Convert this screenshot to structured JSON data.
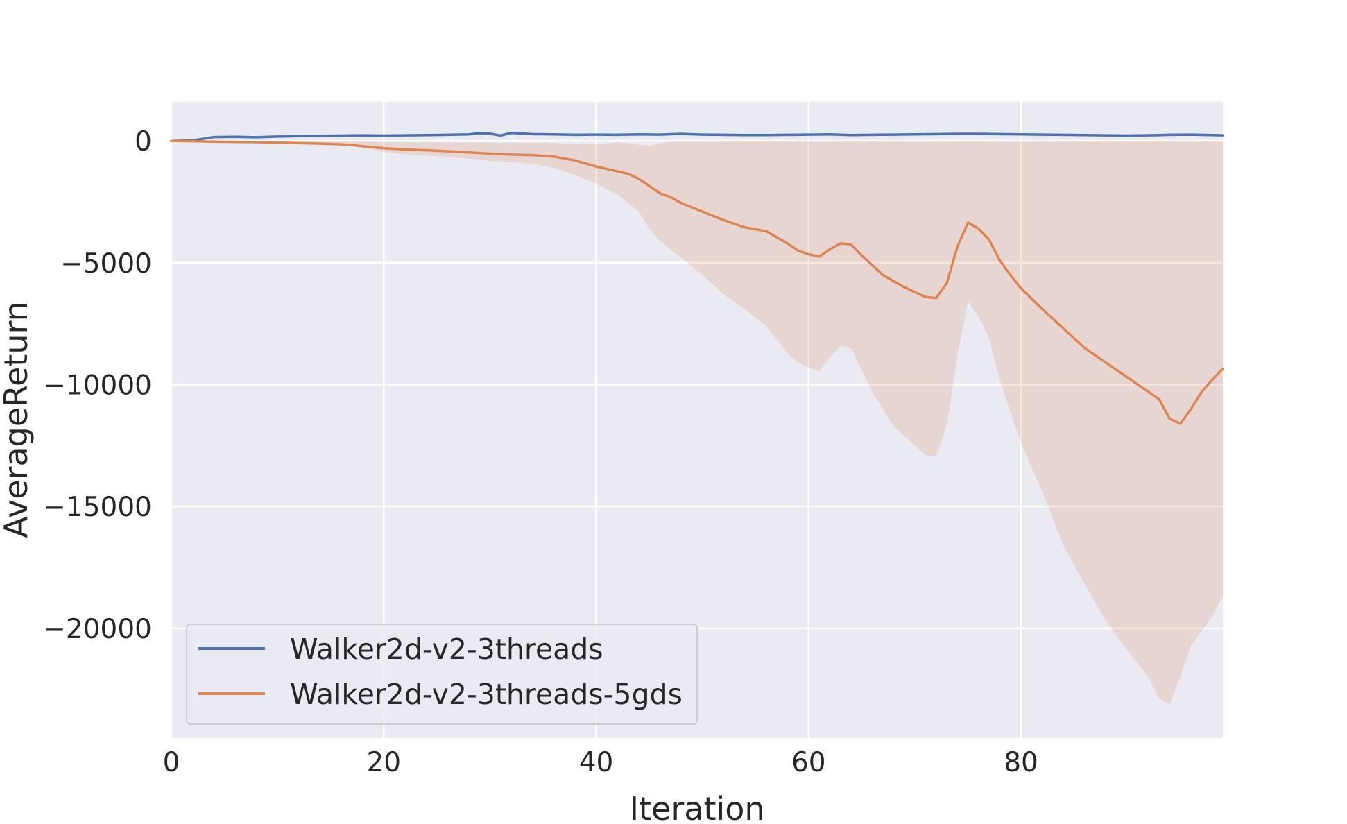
{
  "chart_data": {
    "type": "line",
    "title": "",
    "xlabel": "Iteration",
    "ylabel": "AverageReturn",
    "xlim": [
      0,
      99
    ],
    "ylim": [
      -24500,
      1600
    ],
    "x_ticks": [
      0,
      20,
      40,
      60,
      80
    ],
    "y_ticks": [
      0,
      -5000,
      -10000,
      -15000,
      -20000
    ],
    "x_tick_labels": [
      "0",
      "20",
      "40",
      "60",
      "80"
    ],
    "y_tick_labels": [
      "0",
      "−5000",
      "−10000",
      "−15000",
      "−20000"
    ],
    "grid": true,
    "legend_position": "lower-left",
    "background_color": "#eaeaf2",
    "grid_color": "#ffffff",
    "series": [
      {
        "name": "Walker2d-v2-3threads",
        "color": "#4c72b0",
        "points": [
          [
            0,
            0
          ],
          [
            2,
            20
          ],
          [
            4,
            160
          ],
          [
            6,
            170
          ],
          [
            8,
            150
          ],
          [
            10,
            180
          ],
          [
            12,
            200
          ],
          [
            14,
            210
          ],
          [
            16,
            220
          ],
          [
            18,
            230
          ],
          [
            20,
            220
          ],
          [
            22,
            230
          ],
          [
            24,
            240
          ],
          [
            26,
            250
          ],
          [
            28,
            270
          ],
          [
            29,
            320
          ],
          [
            30,
            300
          ],
          [
            31,
            220
          ],
          [
            32,
            330
          ],
          [
            34,
            280
          ],
          [
            36,
            270
          ],
          [
            38,
            250
          ],
          [
            40,
            260
          ],
          [
            42,
            250
          ],
          [
            44,
            270
          ],
          [
            46,
            260
          ],
          [
            48,
            290
          ],
          [
            50,
            260
          ],
          [
            52,
            250
          ],
          [
            54,
            240
          ],
          [
            56,
            240
          ],
          [
            58,
            250
          ],
          [
            60,
            260
          ],
          [
            62,
            270
          ],
          [
            64,
            240
          ],
          [
            66,
            250
          ],
          [
            68,
            260
          ],
          [
            70,
            270
          ],
          [
            72,
            280
          ],
          [
            74,
            290
          ],
          [
            76,
            290
          ],
          [
            78,
            280
          ],
          [
            80,
            270
          ],
          [
            82,
            260
          ],
          [
            84,
            250
          ],
          [
            86,
            240
          ],
          [
            88,
            230
          ],
          [
            90,
            220
          ],
          [
            92,
            230
          ],
          [
            94,
            250
          ],
          [
            96,
            260
          ],
          [
            98,
            240
          ],
          [
            99,
            230
          ]
        ]
      },
      {
        "name": "Walker2d-v2-3threads-5gds",
        "color": "#dd8452",
        "points": [
          [
            0,
            0
          ],
          [
            2,
            -10
          ],
          [
            4,
            -30
          ],
          [
            6,
            -40
          ],
          [
            8,
            -50
          ],
          [
            10,
            -70
          ],
          [
            12,
            -90
          ],
          [
            14,
            -110
          ],
          [
            16,
            -140
          ],
          [
            17,
            -170
          ],
          [
            18,
            -220
          ],
          [
            20,
            -300
          ],
          [
            22,
            -350
          ],
          [
            24,
            -380
          ],
          [
            26,
            -420
          ],
          [
            28,
            -470
          ],
          [
            30,
            -520
          ],
          [
            32,
            -560
          ],
          [
            34,
            -580
          ],
          [
            36,
            -640
          ],
          [
            38,
            -800
          ],
          [
            40,
            -1050
          ],
          [
            42,
            -1250
          ],
          [
            43,
            -1350
          ],
          [
            44,
            -1550
          ],
          [
            45,
            -1850
          ],
          [
            46,
            -2150
          ],
          [
            47,
            -2300
          ],
          [
            48,
            -2550
          ],
          [
            50,
            -2900
          ],
          [
            52,
            -3250
          ],
          [
            54,
            -3550
          ],
          [
            56,
            -3700
          ],
          [
            58,
            -4200
          ],
          [
            59,
            -4500
          ],
          [
            60,
            -4650
          ],
          [
            61,
            -4750
          ],
          [
            62,
            -4450
          ],
          [
            63,
            -4200
          ],
          [
            64,
            -4250
          ],
          [
            65,
            -4700
          ],
          [
            67,
            -5500
          ],
          [
            69,
            -6000
          ],
          [
            71,
            -6400
          ],
          [
            72,
            -6450
          ],
          [
            73,
            -5850
          ],
          [
            74,
            -4350
          ],
          [
            75,
            -3350
          ],
          [
            76,
            -3600
          ],
          [
            77,
            -4050
          ],
          [
            78,
            -4900
          ],
          [
            79,
            -5500
          ],
          [
            80,
            -6050
          ],
          [
            82,
            -6900
          ],
          [
            84,
            -7700
          ],
          [
            86,
            -8500
          ],
          [
            88,
            -9100
          ],
          [
            90,
            -9700
          ],
          [
            92,
            -10300
          ],
          [
            93,
            -10600
          ],
          [
            94,
            -11400
          ],
          [
            95,
            -11600
          ],
          [
            96,
            -11000
          ],
          [
            97,
            -10300
          ],
          [
            98,
            -9800
          ],
          [
            99,
            -9350
          ]
        ]
      }
    ],
    "bands": [
      {
        "series": "Walker2d-v2-3threads-5gds",
        "color": "#dd8452",
        "opacity": 0.2,
        "upper": [
          [
            0,
            0
          ],
          [
            17,
            0
          ],
          [
            20,
            -50
          ],
          [
            25,
            -60
          ],
          [
            30,
            -70
          ],
          [
            35,
            -80
          ],
          [
            40,
            -150
          ],
          [
            42,
            -60
          ],
          [
            45,
            -200
          ],
          [
            46,
            -120
          ],
          [
            47,
            0
          ],
          [
            60,
            0
          ],
          [
            80,
            0
          ],
          [
            99,
            0
          ]
        ],
        "lower": [
          [
            0,
            0
          ],
          [
            17,
            -170
          ],
          [
            18,
            -250
          ],
          [
            20,
            -450
          ],
          [
            22,
            -550
          ],
          [
            24,
            -600
          ],
          [
            26,
            -650
          ],
          [
            28,
            -720
          ],
          [
            30,
            -820
          ],
          [
            32,
            -880
          ],
          [
            34,
            -930
          ],
          [
            36,
            -1100
          ],
          [
            38,
            -1400
          ],
          [
            40,
            -1750
          ],
          [
            42,
            -2200
          ],
          [
            44,
            -2900
          ],
          [
            45,
            -3600
          ],
          [
            46,
            -4100
          ],
          [
            48,
            -4800
          ],
          [
            50,
            -5500
          ],
          [
            52,
            -6300
          ],
          [
            54,
            -6900
          ],
          [
            56,
            -7600
          ],
          [
            58,
            -8700
          ],
          [
            59,
            -9100
          ],
          [
            60,
            -9300
          ],
          [
            61,
            -9450
          ],
          [
            62,
            -8900
          ],
          [
            63,
            -8400
          ],
          [
            64,
            -8500
          ],
          [
            66,
            -10300
          ],
          [
            68,
            -11700
          ],
          [
            70,
            -12500
          ],
          [
            71,
            -12900
          ],
          [
            72,
            -12950
          ],
          [
            73,
            -11700
          ],
          [
            74,
            -8800
          ],
          [
            75,
            -6600
          ],
          [
            76,
            -7200
          ],
          [
            77,
            -8100
          ],
          [
            78,
            -9800
          ],
          [
            80,
            -12400
          ],
          [
            82,
            -14400
          ],
          [
            84,
            -16600
          ],
          [
            86,
            -18200
          ],
          [
            88,
            -19700
          ],
          [
            90,
            -20900
          ],
          [
            92,
            -22000
          ],
          [
            93,
            -22900
          ],
          [
            94,
            -23100
          ],
          [
            95,
            -22000
          ],
          [
            96,
            -20700
          ],
          [
            98,
            -19500
          ],
          [
            99,
            -18700
          ]
        ]
      }
    ]
  }
}
